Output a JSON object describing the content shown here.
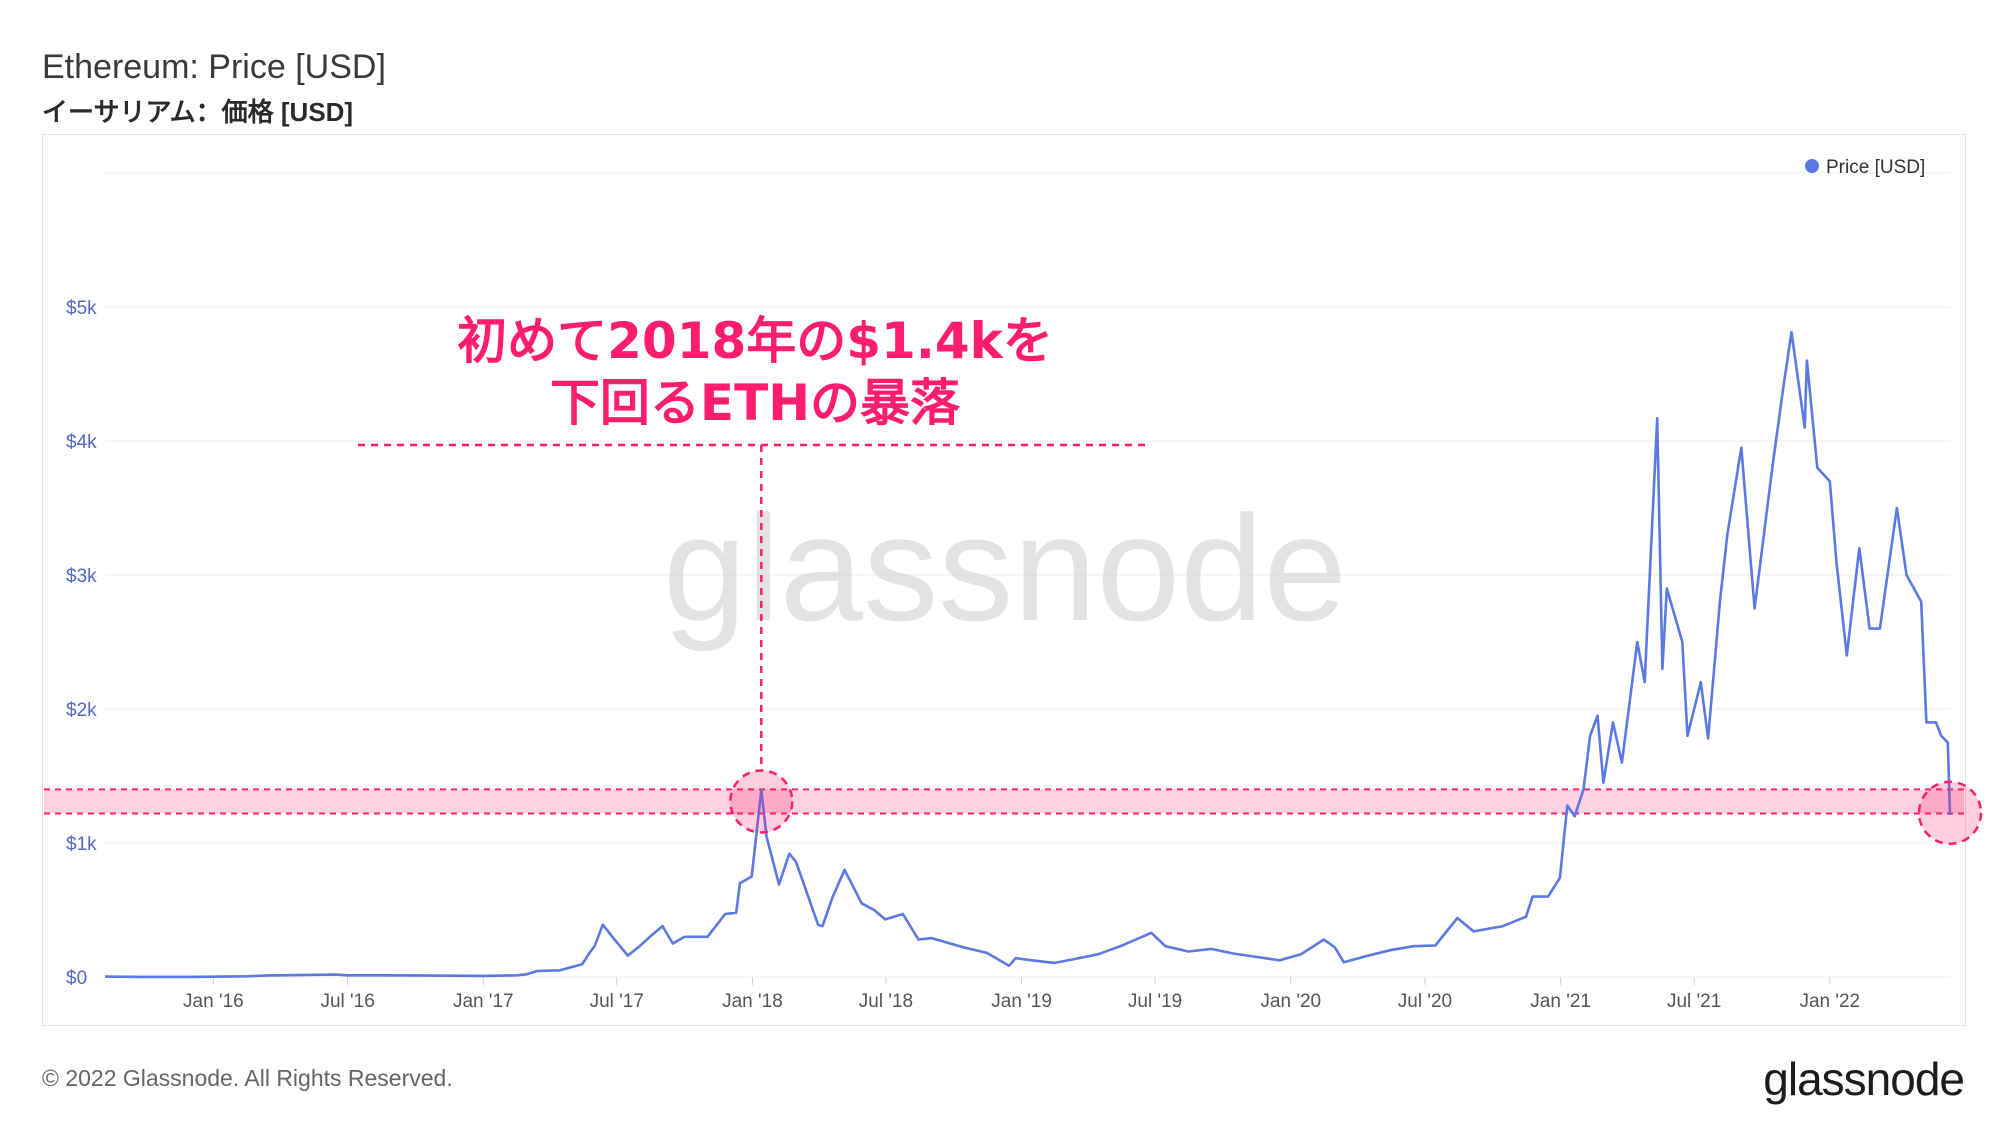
{
  "header": {
    "title": "Ethereum: Price [USD]",
    "subtitle": "イーサリアム：価格 [USD]"
  },
  "footer": {
    "copyright": "© 2022 Glassnode. All Rights Reserved.",
    "logo": "glassnode"
  },
  "watermark": "glassnode",
  "annotation": {
    "line1": "初めて2018年の$1.4kを",
    "line2": "下回るETHの暴落",
    "color": "#ff1e6e",
    "band_low": 1220,
    "band_high": 1400
  },
  "chart_data": {
    "type": "line",
    "title": "Ethereum: Price [USD]",
    "legend": {
      "entries": [
        "Price [USD]"
      ],
      "placement": "top-right"
    },
    "xlabel": "",
    "ylabel": "",
    "ylim": [
      0,
      6000
    ],
    "y_ticks": [
      {
        "value": 0,
        "label": "$0"
      },
      {
        "value": 1000,
        "label": "$1k"
      },
      {
        "value": 2000,
        "label": "$2k"
      },
      {
        "value": 3000,
        "label": "$3k"
      },
      {
        "value": 4000,
        "label": "$4k"
      },
      {
        "value": 5000,
        "label": "$5k"
      }
    ],
    "x_ticks": [
      {
        "date": "2016-01-01",
        "label": "Jan '16"
      },
      {
        "date": "2016-07-01",
        "label": "Jul '16"
      },
      {
        "date": "2017-01-01",
        "label": "Jan '17"
      },
      {
        "date": "2017-07-01",
        "label": "Jul '17"
      },
      {
        "date": "2018-01-01",
        "label": "Jan '18"
      },
      {
        "date": "2018-07-01",
        "label": "Jul '18"
      },
      {
        "date": "2019-01-01",
        "label": "Jan '19"
      },
      {
        "date": "2019-07-01",
        "label": "Jul '19"
      },
      {
        "date": "2020-01-01",
        "label": "Jan '20"
      },
      {
        "date": "2020-07-01",
        "label": "Jul '20"
      },
      {
        "date": "2021-01-01",
        "label": "Jan '21"
      },
      {
        "date": "2021-07-01",
        "label": "Jul '21"
      },
      {
        "date": "2022-01-01",
        "label": "Jan '22"
      }
    ],
    "grid": true,
    "series": [
      {
        "name": "Price [USD]",
        "color": "#5b79e3",
        "points": [
          [
            "2015-08-07",
            3
          ],
          [
            "2015-10-01",
            0.7
          ],
          [
            "2015-12-01",
            0.9
          ],
          [
            "2016-02-15",
            5
          ],
          [
            "2016-03-15",
            12
          ],
          [
            "2016-06-15",
            18
          ],
          [
            "2016-07-01",
            13
          ],
          [
            "2016-10-01",
            12
          ],
          [
            "2017-01-01",
            8
          ],
          [
            "2017-02-15",
            13
          ],
          [
            "2017-03-01",
            20
          ],
          [
            "2017-03-15",
            45
          ],
          [
            "2017-04-15",
            50
          ],
          [
            "2017-05-15",
            95
          ],
          [
            "2017-05-25",
            180
          ],
          [
            "2017-06-01",
            230
          ],
          [
            "2017-06-12",
            390
          ],
          [
            "2017-06-25",
            300
          ],
          [
            "2017-07-16",
            160
          ],
          [
            "2017-08-01",
            230
          ],
          [
            "2017-08-15",
            300
          ],
          [
            "2017-09-01",
            380
          ],
          [
            "2017-09-15",
            250
          ],
          [
            "2017-10-01",
            300
          ],
          [
            "2017-11-01",
            300
          ],
          [
            "2017-11-25",
            470
          ],
          [
            "2017-12-10",
            480
          ],
          [
            "2017-12-15",
            700
          ],
          [
            "2017-12-31",
            750
          ],
          [
            "2018-01-07",
            1100
          ],
          [
            "2018-01-13",
            1396
          ],
          [
            "2018-01-20",
            1050
          ],
          [
            "2018-02-06",
            690
          ],
          [
            "2018-02-20",
            920
          ],
          [
            "2018-03-01",
            860
          ],
          [
            "2018-03-31",
            390
          ],
          [
            "2018-04-06",
            380
          ],
          [
            "2018-04-20",
            600
          ],
          [
            "2018-05-06",
            800
          ],
          [
            "2018-05-29",
            550
          ],
          [
            "2018-06-15",
            500
          ],
          [
            "2018-06-30",
            430
          ],
          [
            "2018-07-24",
            470
          ],
          [
            "2018-08-14",
            280
          ],
          [
            "2018-09-01",
            290
          ],
          [
            "2018-10-15",
            220
          ],
          [
            "2018-11-15",
            180
          ],
          [
            "2018-12-15",
            84
          ],
          [
            "2018-12-24",
            140
          ],
          [
            "2019-01-15",
            125
          ],
          [
            "2019-02-15",
            105
          ],
          [
            "2019-03-15",
            135
          ],
          [
            "2019-04-15",
            170
          ],
          [
            "2019-05-15",
            230
          ],
          [
            "2019-06-26",
            330
          ],
          [
            "2019-07-15",
            230
          ],
          [
            "2019-08-15",
            190
          ],
          [
            "2019-09-15",
            210
          ],
          [
            "2019-10-15",
            175
          ],
          [
            "2019-11-15",
            150
          ],
          [
            "2019-12-17",
            125
          ],
          [
            "2020-01-15",
            170
          ],
          [
            "2020-02-15",
            280
          ],
          [
            "2020-03-01",
            220
          ],
          [
            "2020-03-13",
            110
          ],
          [
            "2020-04-15",
            160
          ],
          [
            "2020-05-15",
            200
          ],
          [
            "2020-06-15",
            230
          ],
          [
            "2020-07-15",
            235
          ],
          [
            "2020-08-14",
            440
          ],
          [
            "2020-09-05",
            340
          ],
          [
            "2020-10-15",
            380
          ],
          [
            "2020-11-15",
            450
          ],
          [
            "2020-11-24",
            600
          ],
          [
            "2020-12-15",
            600
          ],
          [
            "2020-12-31",
            740
          ],
          [
            "2021-01-10",
            1280
          ],
          [
            "2021-01-20",
            1200
          ],
          [
            "2021-02-01",
            1400
          ],
          [
            "2021-02-10",
            1800
          ],
          [
            "2021-02-20",
            1950
          ],
          [
            "2021-02-28",
            1450
          ],
          [
            "2021-03-13",
            1900
          ],
          [
            "2021-03-25",
            1600
          ],
          [
            "2021-04-15",
            2500
          ],
          [
            "2021-04-25",
            2200
          ],
          [
            "2021-05-12",
            4170
          ],
          [
            "2021-05-19",
            2300
          ],
          [
            "2021-05-25",
            2900
          ],
          [
            "2021-06-15",
            2500
          ],
          [
            "2021-06-22",
            1800
          ],
          [
            "2021-07-10",
            2200
          ],
          [
            "2021-07-20",
            1780
          ],
          [
            "2021-08-05",
            2800
          ],
          [
            "2021-08-15",
            3300
          ],
          [
            "2021-09-03",
            3950
          ],
          [
            "2021-09-21",
            2750
          ],
          [
            "2021-10-15",
            3800
          ],
          [
            "2021-10-30",
            4400
          ],
          [
            "2021-11-10",
            4812
          ],
          [
            "2021-11-28",
            4100
          ],
          [
            "2021-12-01",
            4600
          ],
          [
            "2021-12-15",
            3800
          ],
          [
            "2022-01-01",
            3700
          ],
          [
            "2022-01-10",
            3100
          ],
          [
            "2022-01-24",
            2400
          ],
          [
            "2022-02-10",
            3200
          ],
          [
            "2022-02-24",
            2600
          ],
          [
            "2022-03-10",
            2600
          ],
          [
            "2022-04-02",
            3500
          ],
          [
            "2022-04-15",
            3000
          ],
          [
            "2022-04-25",
            2900
          ],
          [
            "2022-05-05",
            2800
          ],
          [
            "2022-05-12",
            1900
          ],
          [
            "2022-05-25",
            1900
          ],
          [
            "2022-06-01",
            1800
          ],
          [
            "2022-06-10",
            1750
          ],
          [
            "2022-06-13",
            1210
          ]
        ]
      }
    ]
  }
}
